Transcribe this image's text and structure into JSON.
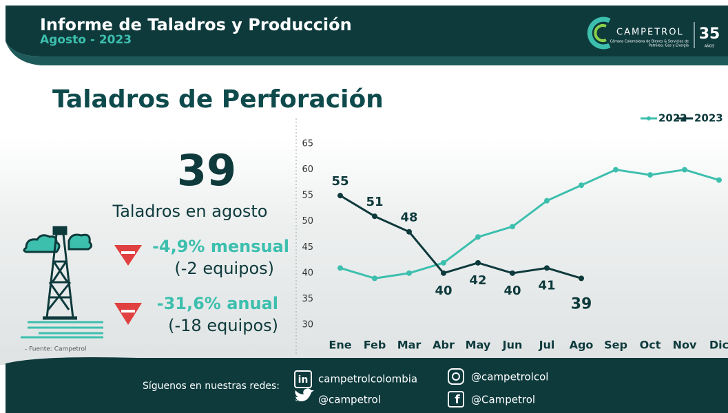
{
  "header": {
    "title": "Informe de Taladros y Producción",
    "subtitle": "Agosto - 2023",
    "logo": {
      "name": "CAMPETROL",
      "tagline_1": "Cámara Colombiana de Bienes & Servicios de",
      "tagline_2": "Petróleo, Gas y Energía",
      "anniversary": "35",
      "anniversary_label": "AÑOS"
    }
  },
  "section_title": "Taladros de Perforación",
  "kpi": {
    "value": 39,
    "label": "Taladros en agosto",
    "monthly_change": "-4,9% mensual",
    "monthly_units": "(-2 equipos)",
    "annual_change": "-31,6% anual",
    "annual_units": "(-18 equipos)",
    "source": "- Fuente: Campetrol"
  },
  "chart_data": {
    "type": "line",
    "categories": [
      "Ene",
      "Feb",
      "Mar",
      "Abr",
      "May",
      "Jun",
      "Jul",
      "Ago",
      "Sep",
      "Oct",
      "Nov",
      "Dic"
    ],
    "series": [
      {
        "name": "2022",
        "color": "#3dbfae",
        "values": [
          41,
          39,
          40,
          42,
          47,
          49,
          54,
          57,
          60,
          59,
          60,
          58
        ]
      },
      {
        "name": "2023",
        "color": "#0e3a3c",
        "values": [
          55,
          51,
          48,
          40,
          42,
          40,
          41,
          39,
          null,
          null,
          null,
          null
        ],
        "data_labels": true
      }
    ],
    "ylim": [
      30,
      65
    ],
    "yticks": [
      30,
      35,
      40,
      45,
      50,
      55,
      60,
      65
    ],
    "grid": false,
    "legend": "top-right"
  },
  "footer": {
    "prompt": "Síguenos en nuestras redes:",
    "linkedin": "campetrolcolombia",
    "twitter": "@campetrol",
    "instagram": "@campetrolcol",
    "facebook": "@Campetrol"
  }
}
